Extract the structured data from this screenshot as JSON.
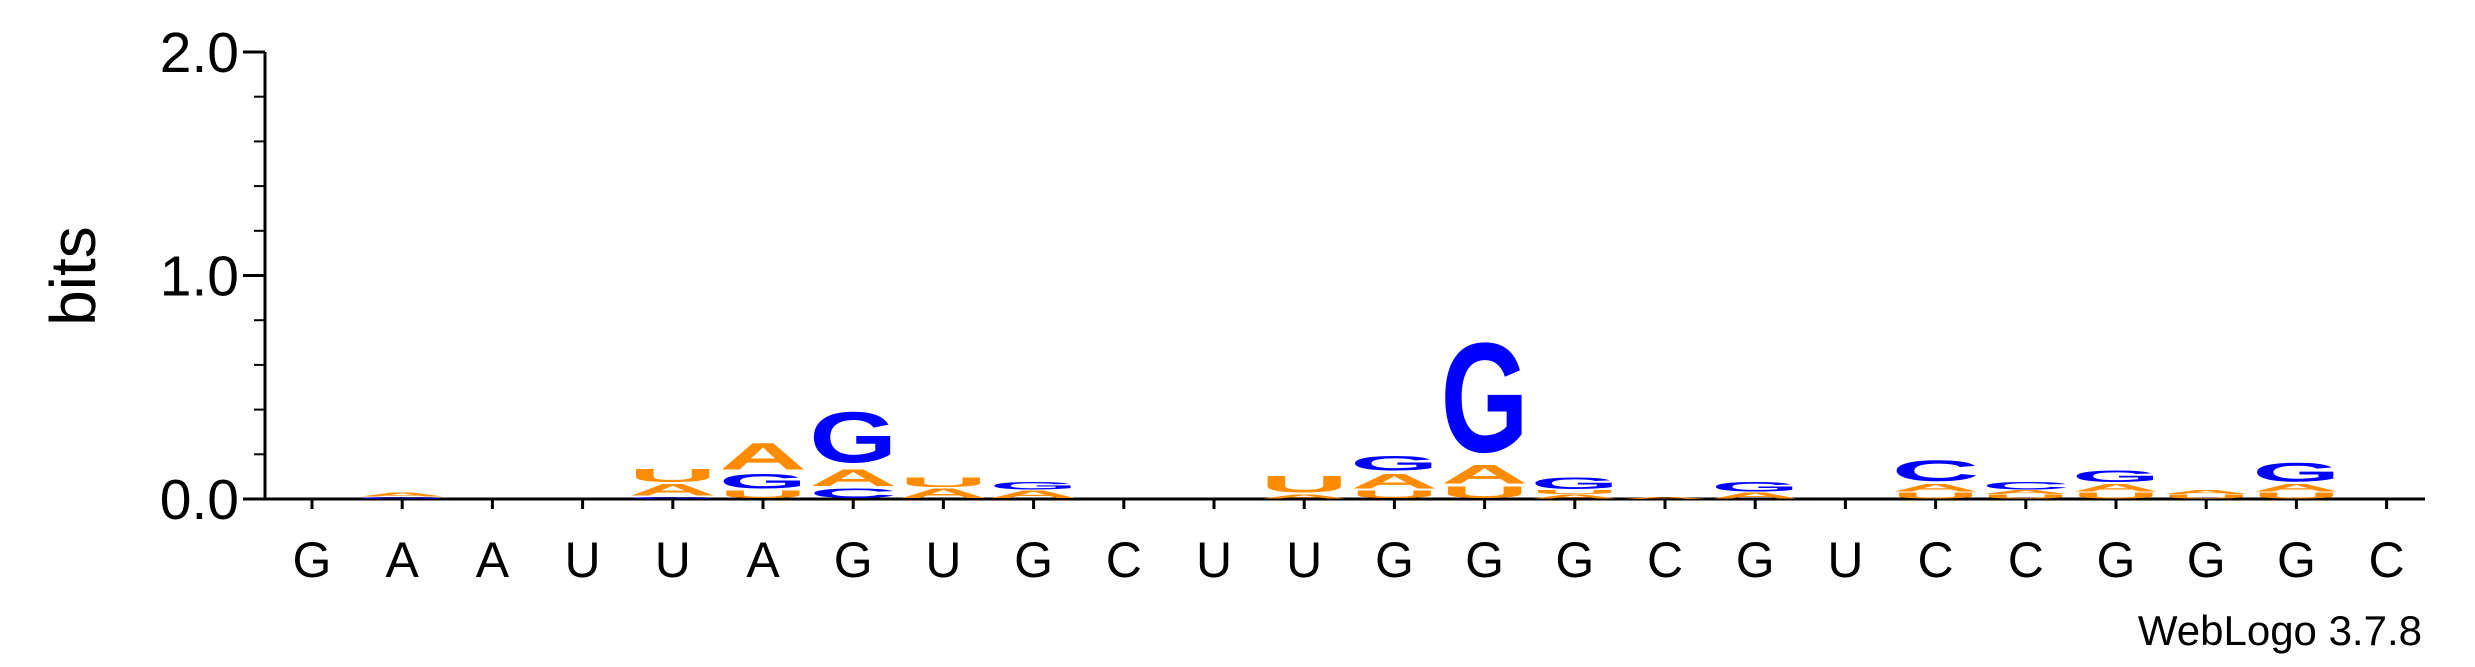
{
  "chart_data": {
    "type": "logo",
    "ylabel": "bits",
    "footer": "WebLogo 3.7.8",
    "ylim": [
      0,
      2
    ],
    "yticks": [
      {
        "value": 0,
        "label": "0.0"
      },
      {
        "value": 1,
        "label": "1.0"
      },
      {
        "value": 2,
        "label": "2.0"
      }
    ],
    "colors": {
      "A": "#ff8c00",
      "U": "#ff8c00",
      "G": "#0000ff",
      "C": "#0000ff"
    },
    "categories": [
      "G",
      "A",
      "A",
      "U",
      "U",
      "A",
      "G",
      "U",
      "G",
      "C",
      "U",
      "U",
      "G",
      "G",
      "G",
      "C",
      "G",
      "U",
      "C",
      "C",
      "G",
      "G",
      "G",
      "C"
    ],
    "stacks": [
      [],
      [
        {
          "letter": "G",
          "value": 0.01
        },
        {
          "letter": "A",
          "value": 0.02
        }
      ],
      [],
      [],
      [
        {
          "letter": "G",
          "value": 0.01
        },
        {
          "letter": "A",
          "value": 0.06
        },
        {
          "letter": "U",
          "value": 0.07
        }
      ],
      [
        {
          "letter": "U",
          "value": 0.04
        },
        {
          "letter": "G",
          "value": 0.08
        },
        {
          "letter": "A",
          "value": 0.14
        }
      ],
      [
        {
          "letter": "C",
          "value": 0.05
        },
        {
          "letter": "A",
          "value": 0.09
        },
        {
          "letter": "G",
          "value": 0.27
        }
      ],
      [
        {
          "letter": "A",
          "value": 0.05
        },
        {
          "letter": "U",
          "value": 0.05
        }
      ],
      [
        {
          "letter": "A",
          "value": 0.04
        },
        {
          "letter": "G",
          "value": 0.04
        }
      ],
      [],
      [],
      [
        {
          "letter": "A",
          "value": 0.02
        },
        {
          "letter": "U",
          "value": 0.09
        }
      ],
      [
        {
          "letter": "U",
          "value": 0.04
        },
        {
          "letter": "A",
          "value": 0.08
        },
        {
          "letter": "G",
          "value": 0.08
        }
      ],
      [
        {
          "letter": "U",
          "value": 0.06
        },
        {
          "letter": "A",
          "value": 0.1
        },
        {
          "letter": "G",
          "value": 0.58
        }
      ],
      [
        {
          "letter": "A",
          "value": 0.02
        },
        {
          "letter": "U",
          "value": 0.02
        },
        {
          "letter": "G",
          "value": 0.06
        }
      ],
      [
        {
          "letter": "A",
          "value": 0.01
        }
      ],
      [
        {
          "letter": "A",
          "value": 0.03
        },
        {
          "letter": "G",
          "value": 0.05
        }
      ],
      [],
      [
        {
          "letter": "U",
          "value": 0.03
        },
        {
          "letter": "A",
          "value": 0.04
        },
        {
          "letter": "C",
          "value": 0.11
        }
      ],
      [
        {
          "letter": "U",
          "value": 0.02
        },
        {
          "letter": "A",
          "value": 0.02
        },
        {
          "letter": "C",
          "value": 0.04
        }
      ],
      [
        {
          "letter": "U",
          "value": 0.03
        },
        {
          "letter": "A",
          "value": 0.04
        },
        {
          "letter": "G",
          "value": 0.06
        }
      ],
      [
        {
          "letter": "U",
          "value": 0.02
        },
        {
          "letter": "A",
          "value": 0.02
        }
      ],
      [
        {
          "letter": "U",
          "value": 0.03
        },
        {
          "letter": "A",
          "value": 0.04
        },
        {
          "letter": "G",
          "value": 0.1
        }
      ],
      []
    ]
  }
}
